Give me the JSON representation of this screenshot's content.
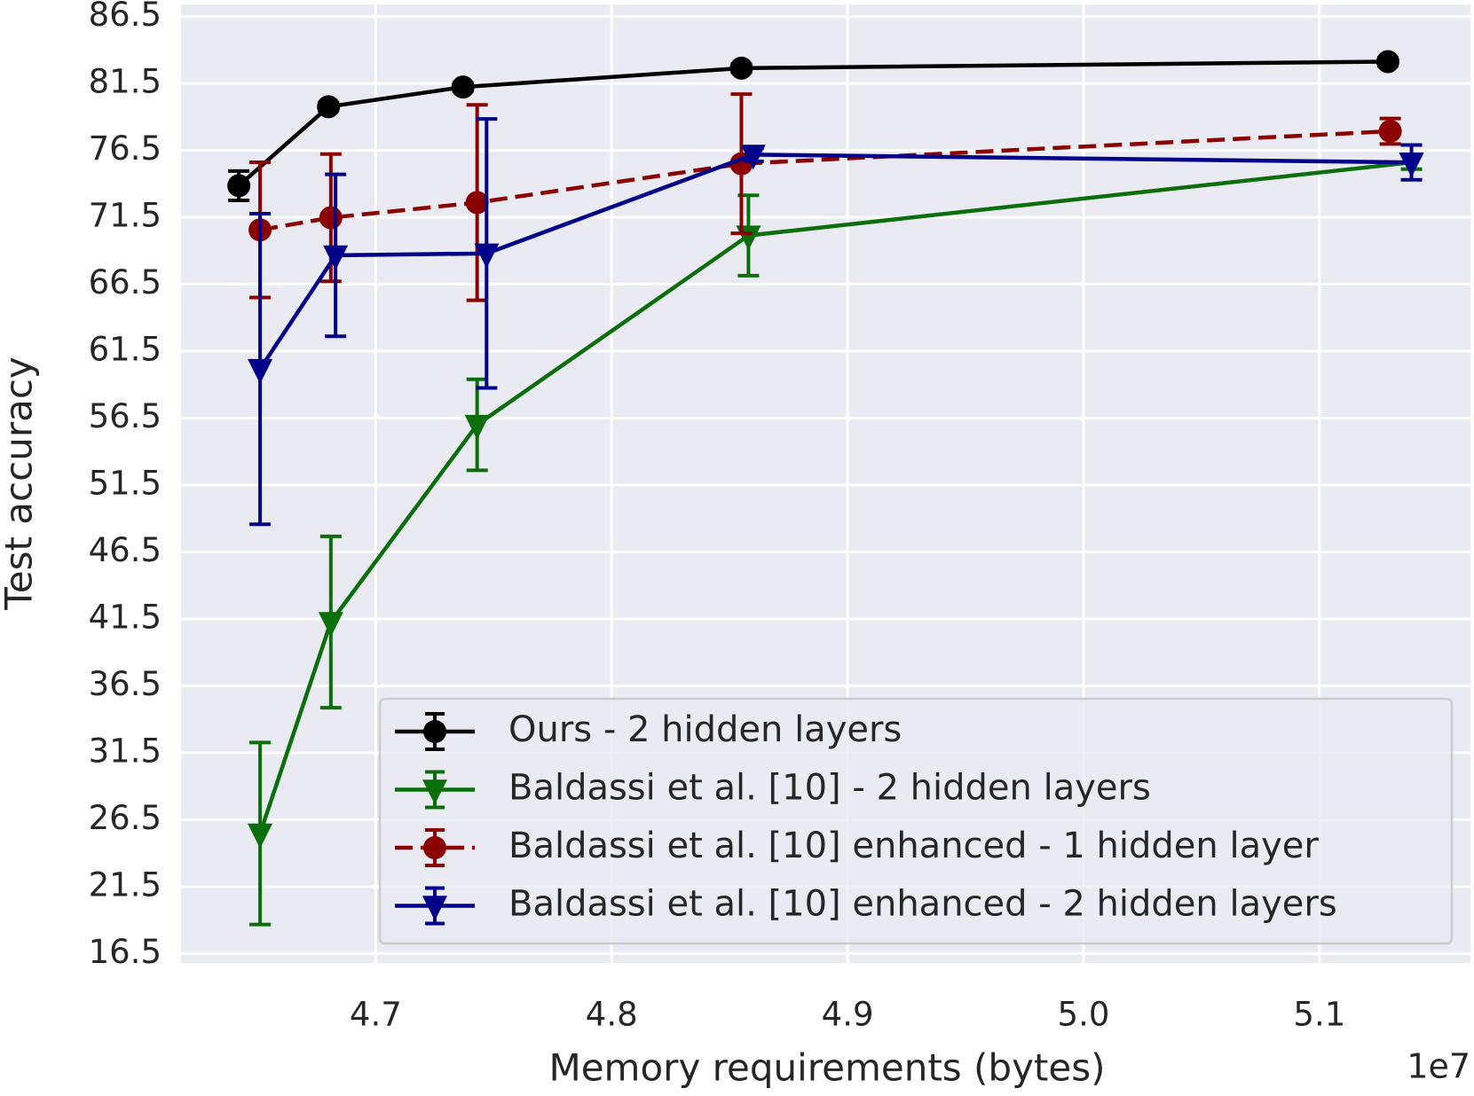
{
  "chart_data": {
    "type": "line",
    "x_label": "Memory requirements (bytes)",
    "x_offset_label": "1e7",
    "y_label": "Test accuracy",
    "xlim": [
      4.6175,
      5.164
    ],
    "ylim": [
      15.8,
      87.4
    ],
    "xticks": [
      4.7,
      4.8,
      4.9,
      {
        "value": 5,
        "label": "5.0"
      },
      5.1
    ],
    "yticks": [
      16.5,
      21.5,
      26.5,
      31.5,
      36.5,
      41.5,
      46.5,
      51.5,
      56.5,
      61.5,
      66.5,
      71.5,
      76.5,
      81.5,
      86.5
    ],
    "grid": true,
    "legend": "lower right",
    "series": [
      {
        "name": "Ours - 2 hidden layers",
        "color": "#000000",
        "marker": "circle",
        "linestyle": "solid",
        "x": [
          4.642,
          4.68,
          4.737,
          4.855,
          5.129
        ],
        "values": [
          73.86,
          79.76,
          81.23,
          82.64,
          83.13
        ],
        "errors": [
          1.1,
          0.3,
          0.3,
          0.3,
          0.3
        ]
      },
      {
        "name": "Baldassi et al. [10] - 2 hidden layers",
        "color": "#0a6e0a",
        "marker": "triangle-down",
        "linestyle": "solid",
        "x": [
          4.651,
          4.681,
          4.743,
          4.858,
          5.139
        ],
        "values": [
          25.47,
          41.27,
          56.0,
          70.14,
          75.6
        ],
        "errors": [
          6.8,
          6.4,
          3.4,
          3.0,
          0.5
        ]
      },
      {
        "name": "Baldassi et al. [10] enhanced - 1 hidden layer",
        "color": "#8b0000",
        "marker": "circle",
        "linestyle": "dashed",
        "x": [
          4.651,
          4.681,
          4.743,
          4.855,
          5.13
        ],
        "values": [
          70.56,
          71.47,
          72.6,
          75.5,
          77.93
        ],
        "errors": [
          5.05,
          4.75,
          7.3,
          5.2,
          0.95
        ]
      },
      {
        "name": "Baldassi et al. [10] enhanced - 2 hidden layers",
        "color": "#00008b",
        "marker": "triangle-down",
        "linestyle": "solid",
        "x": [
          4.651,
          4.683,
          4.747,
          4.86,
          5.139
        ],
        "values": [
          60.17,
          68.66,
          68.8,
          76.18,
          75.6
        ],
        "errors": [
          11.6,
          6.05,
          10.05,
          0.5,
          1.3
        ]
      }
    ]
  }
}
